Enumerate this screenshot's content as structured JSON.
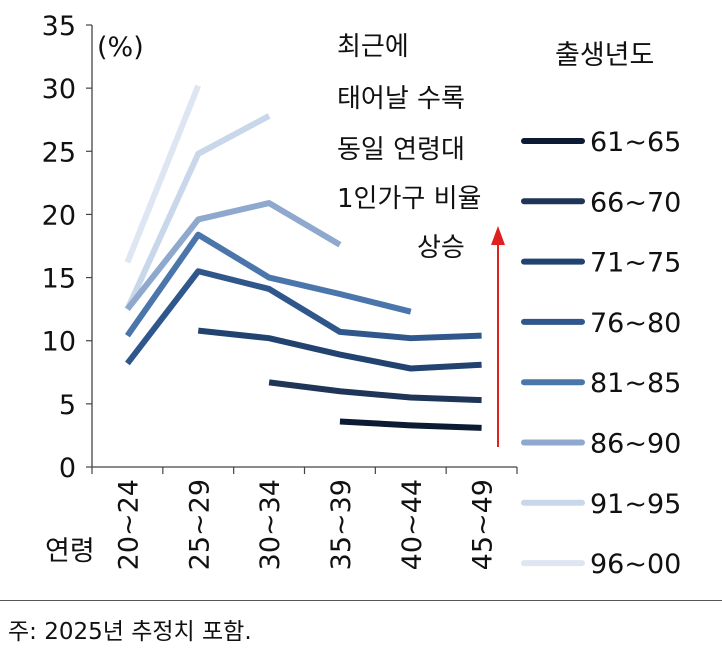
{
  "chart_data": {
    "type": "line",
    "unit_label": "(%)",
    "xlabel": "연령",
    "categories": [
      "20~24",
      "25~29",
      "30~34",
      "35~39",
      "40~44",
      "45~49"
    ],
    "ylim": [
      0,
      35
    ],
    "yticks": [
      0,
      5,
      10,
      15,
      20,
      25,
      30,
      35
    ],
    "legend_title": "출생년도",
    "legend_position": "right",
    "series": [
      {
        "name": "61~65",
        "color": "#0d1a33",
        "values": [
          null,
          null,
          null,
          3.6,
          3.3,
          3.1
        ]
      },
      {
        "name": "66~70",
        "color": "#1e3557",
        "values": [
          null,
          null,
          6.7,
          6.0,
          5.5,
          5.3
        ]
      },
      {
        "name": "71~75",
        "color": "#22436f",
        "values": [
          null,
          10.8,
          10.2,
          8.9,
          7.8,
          8.1
        ]
      },
      {
        "name": "76~80",
        "color": "#2f578c",
        "values": [
          8.2,
          15.5,
          14.1,
          10.7,
          10.2,
          10.4
        ]
      },
      {
        "name": "81~85",
        "color": "#4a76ab",
        "values": [
          10.4,
          18.4,
          15.0,
          13.7,
          12.3,
          null
        ]
      },
      {
        "name": "86~90",
        "color": "#8ea9cd",
        "values": [
          12.5,
          19.6,
          20.9,
          17.6,
          null,
          null
        ]
      },
      {
        "name": "91~95",
        "color": "#c9d7ea",
        "values": [
          12.5,
          24.8,
          27.8,
          null,
          null,
          null
        ]
      },
      {
        "name": "96~00",
        "color": "#dde6f2",
        "values": [
          16.2,
          30.2,
          null,
          null,
          null,
          null
        ]
      }
    ],
    "annotation": {
      "lines": [
        "최근에",
        "태어날 수록",
        "동일 연령대",
        "1인가구 비율",
        "상승"
      ],
      "arrow_color": "#e0201f"
    }
  },
  "note": "주: 2025년 추정치 포함."
}
